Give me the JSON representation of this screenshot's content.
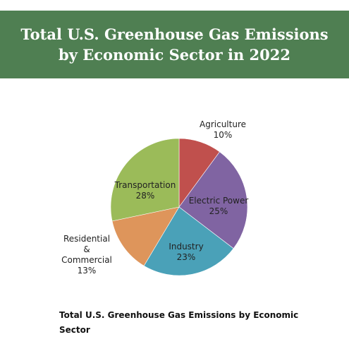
{
  "header": {
    "title": "Total U.S. Greenhouse Gas Emissions by Economic Sector in 2022"
  },
  "caption": "Total U.S. Greenhouse Gas Emissions by Economic Sector",
  "chart_data": {
    "type": "pie",
    "title": "Total U.S. Greenhouse Gas Emissions by Economic Sector in 2022",
    "slices": [
      {
        "name": "Agriculture",
        "value": 10,
        "label": "10%",
        "color": "#c0504d"
      },
      {
        "name": "Electric Power",
        "value": 25,
        "label": "25%",
        "color": "#8064a2"
      },
      {
        "name": "Industry",
        "value": 23,
        "label": "23%",
        "color": "#4aa1b8"
      },
      {
        "name": "Residential & Commercial",
        "value": 13,
        "label": "13%",
        "color": "#de955b"
      },
      {
        "name": "Transportation",
        "value": 28,
        "label": "28%",
        "color": "#9bbb59"
      }
    ],
    "start_angle_deg": 0,
    "direction": "clockwise",
    "legend": "none"
  }
}
